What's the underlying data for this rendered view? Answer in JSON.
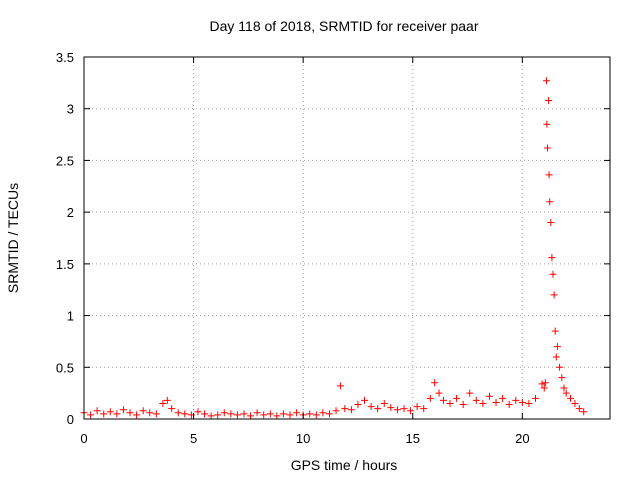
{
  "chart_data": {
    "type": "scatter",
    "title": "Day 118 of 2018, SRMTID for receiver paar",
    "xlabel": "GPS time / hours",
    "ylabel": "SRMTID / TECUs",
    "xlim": [
      0,
      24
    ],
    "ylim": [
      0,
      3.5
    ],
    "xticks": [
      0,
      5,
      10,
      15,
      20
    ],
    "xtick_labels": [
      "0",
      "5",
      "10",
      "15",
      "20"
    ],
    "yticks": [
      0,
      0.5,
      1,
      1.5,
      2,
      2.5,
      3,
      3.5
    ],
    "ytick_labels": [
      "0",
      "0.5",
      "1",
      "1.5",
      "2",
      "2.5",
      "3",
      "3.5"
    ],
    "grid": true,
    "marker": "+",
    "colors": {
      "series": "#ff0000",
      "grid": "#a0a0a0"
    },
    "series": [
      {
        "name": "SRMTID",
        "x": [
          0.0,
          0.3,
          0.6,
          0.9,
          1.2,
          1.5,
          1.8,
          2.1,
          2.4,
          2.7,
          3.0,
          3.3,
          3.6,
          3.8,
          4.0,
          4.3,
          4.6,
          4.9,
          5.2,
          5.5,
          5.8,
          6.1,
          6.4,
          6.7,
          7.0,
          7.3,
          7.6,
          7.9,
          8.2,
          8.5,
          8.8,
          9.1,
          9.4,
          9.7,
          10.0,
          10.3,
          10.6,
          10.9,
          11.2,
          11.5,
          11.7,
          11.9,
          12.2,
          12.5,
          12.8,
          13.1,
          13.4,
          13.7,
          14.0,
          14.3,
          14.6,
          14.9,
          15.2,
          15.5,
          15.8,
          16.0,
          16.2,
          16.4,
          16.7,
          17.0,
          17.3,
          17.6,
          17.9,
          18.2,
          18.5,
          18.8,
          19.1,
          19.4,
          19.7,
          20.0,
          20.3,
          20.6,
          20.9,
          21.0,
          21.05,
          21.1,
          21.12,
          21.15,
          21.2,
          21.22,
          21.25,
          21.3,
          21.35,
          21.4,
          21.45,
          21.5,
          21.55,
          21.6,
          21.7,
          21.8,
          21.9,
          22.0,
          22.2,
          22.4,
          22.6,
          22.8
        ],
        "y": [
          0.06,
          0.04,
          0.08,
          0.05,
          0.07,
          0.05,
          0.09,
          0.06,
          0.04,
          0.08,
          0.06,
          0.05,
          0.15,
          0.18,
          0.1,
          0.06,
          0.05,
          0.04,
          0.07,
          0.05,
          0.03,
          0.04,
          0.06,
          0.05,
          0.04,
          0.05,
          0.03,
          0.06,
          0.04,
          0.05,
          0.03,
          0.05,
          0.04,
          0.06,
          0.04,
          0.05,
          0.04,
          0.06,
          0.05,
          0.08,
          0.32,
          0.1,
          0.09,
          0.14,
          0.18,
          0.12,
          0.1,
          0.15,
          0.11,
          0.09,
          0.1,
          0.08,
          0.12,
          0.1,
          0.2,
          0.35,
          0.25,
          0.18,
          0.15,
          0.2,
          0.14,
          0.25,
          0.18,
          0.15,
          0.22,
          0.16,
          0.2,
          0.14,
          0.18,
          0.16,
          0.15,
          0.2,
          0.34,
          0.3,
          0.35,
          3.27,
          2.85,
          2.62,
          3.08,
          2.36,
          2.1,
          1.9,
          1.56,
          1.4,
          1.2,
          0.85,
          0.6,
          0.7,
          0.5,
          0.4,
          0.3,
          0.25,
          0.2,
          0.15,
          0.1,
          0.07
        ]
      }
    ]
  }
}
